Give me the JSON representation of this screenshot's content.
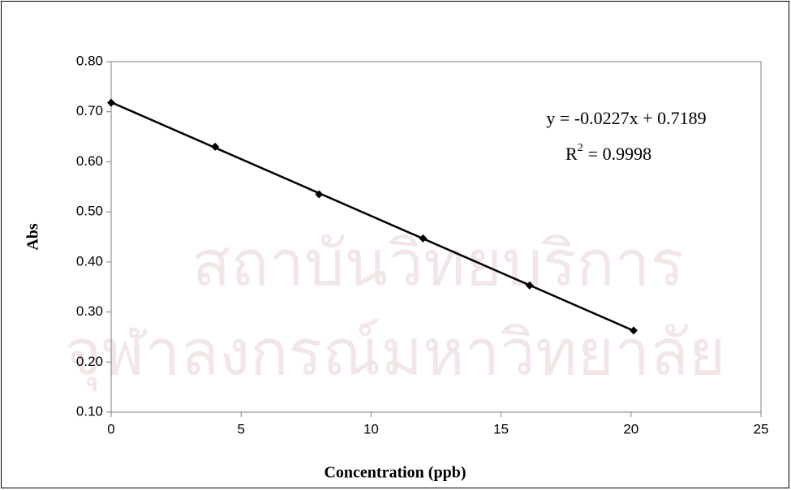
{
  "chart_data": {
    "type": "scatter",
    "x_label": "Concentration (ppb)",
    "y_label": "Abs",
    "series": [
      {
        "name": "Abs",
        "color": "#000000",
        "x": [
          0,
          4,
          8,
          12,
          16.1,
          20.1
        ],
        "values": [
          0.718,
          0.63,
          0.535,
          0.447,
          0.353,
          0.263
        ]
      }
    ],
    "trendline": {
      "slope": -0.0227,
      "intercept": 0.7189,
      "color": "#000000",
      "equation": "y = -0.0227x + 0.7189",
      "r_squared": {
        "symbol": "R",
        "exponent": "2",
        "value_text": "= 0.9998"
      }
    },
    "xlim": [
      0,
      25
    ],
    "xticks": [
      0,
      5,
      10,
      15,
      20,
      25
    ],
    "ylim": [
      0.1,
      0.8
    ],
    "yticks": [
      {
        "value": 0.1,
        "label": "0.10"
      },
      {
        "value": 0.2,
        "label": "0.20"
      },
      {
        "value": 0.3,
        "label": "0.30"
      },
      {
        "value": 0.4,
        "label": "0.40"
      },
      {
        "value": 0.5,
        "label": "0.50"
      },
      {
        "value": 0.6,
        "label": "0.60"
      },
      {
        "value": 0.7,
        "label": "0.70"
      },
      {
        "value": 0.8,
        "label": "0.80"
      }
    ],
    "grid": false
  },
  "watermark": [
    "สถาบันวิทยบริการ",
    "จุฬาลงกรณ์มหาวิทยาลัย"
  ]
}
